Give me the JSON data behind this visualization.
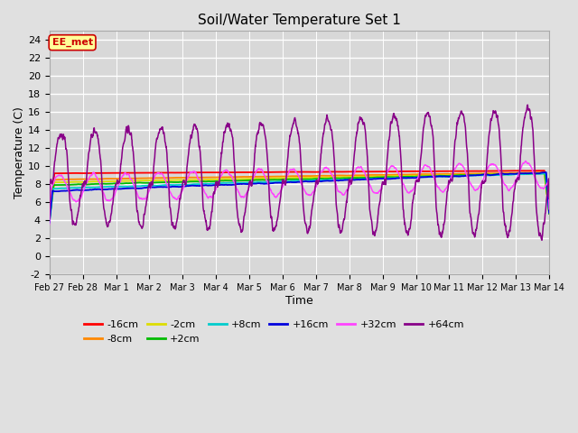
{
  "title": "Soil/Water Temperature Set 1",
  "xlabel": "Time",
  "ylabel": "Temperature (C)",
  "ylim": [
    -2,
    25
  ],
  "yticks": [
    -2,
    0,
    2,
    4,
    6,
    8,
    10,
    12,
    14,
    16,
    18,
    20,
    22,
    24
  ],
  "xtick_labels": [
    "Feb 27",
    "Feb 28",
    "Mar 1",
    "Mar 2",
    "Mar 3",
    "Mar 4",
    "Mar 5",
    "Mar 6",
    "Mar 7",
    "Mar 8",
    "Mar 9",
    "Mar 10",
    "Mar 11",
    "Mar 12",
    "Mar 13",
    "Mar 14"
  ],
  "bg_color": "#e0e0e0",
  "plot_bg_color": "#d8d8d8",
  "series": [
    {
      "label": "-16cm",
      "color": "#ff0000"
    },
    {
      "label": "-8cm",
      "color": "#ff8800"
    },
    {
      "label": "-2cm",
      "color": "#dddd00"
    },
    {
      "label": "+2cm",
      "color": "#00bb00"
    },
    {
      "label": "+8cm",
      "color": "#00cccc"
    },
    {
      "label": "+16cm",
      "color": "#0000dd"
    },
    {
      "label": "+32cm",
      "color": "#ff44ff"
    },
    {
      "label": "+64cm",
      "color": "#880088"
    }
  ],
  "watermark": "EE_met",
  "watermark_bg": "#ffff99",
  "watermark_border": "#cc0000",
  "legend_row1": [
    "-16cm",
    "-8cm",
    "-2cm",
    "+2cm",
    "+8cm",
    "+16cm"
  ],
  "legend_row2": [
    "+32cm",
    "+64cm"
  ]
}
